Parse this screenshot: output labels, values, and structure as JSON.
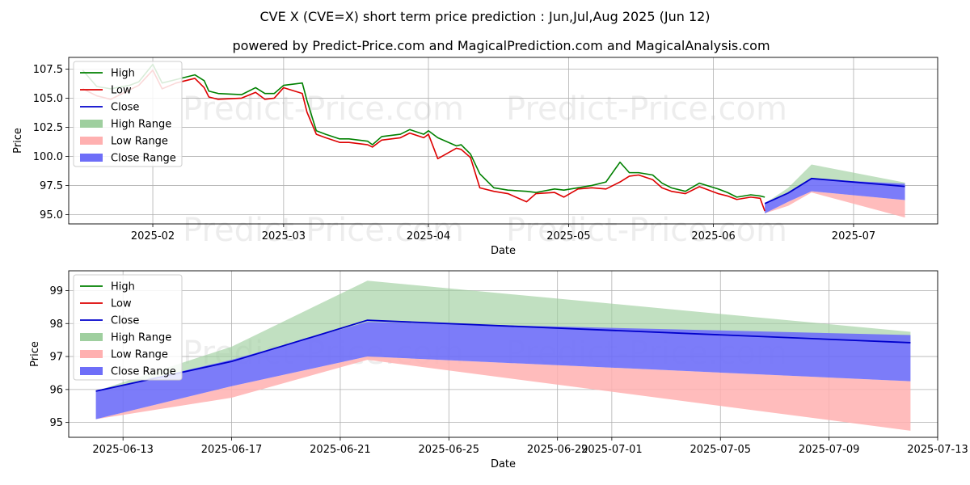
{
  "title": "CVE X (CVE=X) short term price prediction : Jun,Jul,Aug 2025 (Jun 12)",
  "subtitle": "powered by Predict-Price.com and MagicalPrediction.com and MagicalAnalysis.com",
  "watermark": "Predict-Price.com",
  "colors": {
    "high": "#008000",
    "low": "#dd0000",
    "close": "#0000cc",
    "high_range": "#9fcf9f",
    "low_range": "#ffb0b0",
    "close_range": "#6e6ef8"
  },
  "legend": [
    "High",
    "Low",
    "Close",
    "High Range",
    "Low Range",
    "Close Range"
  ],
  "chart_data": [
    {
      "type": "line",
      "name": "history-and-forecast",
      "xlabel": "Date",
      "ylabel": "Price",
      "xlim": [
        "2025-01-14",
        "2025-07-19"
      ],
      "ylim": [
        94.2,
        108.5
      ],
      "xticks": [
        "2025-02",
        "2025-03",
        "2025-04",
        "2025-05",
        "2025-06",
        "2025-07"
      ],
      "yticks": [
        "95.0",
        "97.5",
        "100.0",
        "102.5",
        "105.0",
        "107.5"
      ],
      "history": {
        "dates": [
          "2025-01-17",
          "2025-01-20",
          "2025-01-23",
          "2025-01-27",
          "2025-01-29",
          "2025-02-01",
          "2025-02-03",
          "2025-02-06",
          "2025-02-10",
          "2025-02-12",
          "2025-02-13",
          "2025-02-15",
          "2025-02-20",
          "2025-02-23",
          "2025-02-25",
          "2025-02-27",
          "2025-03-01",
          "2025-03-05",
          "2025-03-06",
          "2025-03-08",
          "2025-03-10",
          "2025-03-13",
          "2025-03-15",
          "2025-03-19",
          "2025-03-20",
          "2025-03-22",
          "2025-03-26",
          "2025-03-28",
          "2025-03-31",
          "2025-04-01",
          "2025-04-03",
          "2025-04-07",
          "2025-04-08",
          "2025-04-10",
          "2025-04-12",
          "2025-04-15",
          "2025-04-18",
          "2025-04-22",
          "2025-04-24",
          "2025-04-28",
          "2025-04-30",
          "2025-05-03",
          "2025-05-06",
          "2025-05-09",
          "2025-05-12",
          "2025-05-14",
          "2025-05-16",
          "2025-05-19",
          "2025-05-21",
          "2025-05-23",
          "2025-05-26",
          "2025-05-29",
          "2025-06-02",
          "2025-06-04",
          "2025-06-06",
          "2025-06-09",
          "2025-06-11",
          "2025-06-12"
        ],
        "high": [
          107.4,
          106.0,
          105.8,
          106.1,
          106.4,
          107.9,
          106.3,
          106.6,
          107.0,
          106.5,
          105.6,
          105.4,
          105.3,
          105.9,
          105.4,
          105.4,
          106.1,
          106.3,
          104.8,
          102.2,
          101.9,
          101.5,
          101.5,
          101.3,
          101.0,
          101.7,
          101.9,
          102.3,
          101.9,
          102.2,
          101.6,
          100.9,
          101.0,
          100.2,
          98.5,
          97.3,
          97.1,
          97.0,
          96.9,
          97.2,
          97.1,
          97.3,
          97.5,
          97.8,
          99.5,
          98.6,
          98.6,
          98.4,
          97.7,
          97.3,
          97.0,
          97.7,
          97.2,
          96.9,
          96.5,
          96.7,
          96.6,
          96.5
        ],
        "low": [
          105.8,
          105.2,
          104.9,
          105.7,
          106.1,
          107.4,
          105.8,
          106.3,
          106.7,
          105.9,
          105.1,
          104.9,
          105.0,
          105.5,
          104.9,
          105.0,
          105.9,
          105.4,
          103.8,
          101.9,
          101.6,
          101.2,
          101.2,
          101.0,
          100.8,
          101.4,
          101.6,
          102.0,
          101.6,
          101.9,
          99.8,
          100.7,
          100.6,
          99.9,
          97.3,
          97.0,
          96.8,
          96.1,
          96.8,
          96.9,
          96.5,
          97.2,
          97.3,
          97.2,
          97.8,
          98.3,
          98.4,
          98.0,
          97.3,
          97.0,
          96.8,
          97.4,
          96.8,
          96.6,
          96.3,
          96.5,
          96.4,
          95.3
        ],
        "close": [],
        "note": "historical High/Low approximated from the rendered lines"
      },
      "forecast": {
        "dates": [
          "2025-06-12",
          "2025-06-17",
          "2025-06-22",
          "2025-07-12"
        ],
        "close": [
          95.95,
          96.85,
          98.1,
          97.42
        ],
        "close_range_upper": [
          95.95,
          96.9,
          98.05,
          97.65
        ],
        "close_range_lower": [
          95.1,
          96.1,
          97.0,
          96.25
        ],
        "high_range_upper": [
          95.95,
          97.3,
          99.3,
          97.75
        ],
        "low_range_lower": [
          95.1,
          95.75,
          96.9,
          94.75
        ]
      }
    },
    {
      "type": "area",
      "name": "forecast-zoom",
      "xlabel": "Date",
      "ylabel": "Price",
      "xlim": [
        "2025-06-11",
        "2025-07-13"
      ],
      "ylim": [
        94.55,
        99.6
      ],
      "xticks": [
        "2025-06-13",
        "2025-06-17",
        "2025-06-21",
        "2025-06-25",
        "2025-06-29",
        "2025-07-01",
        "2025-07-05",
        "2025-07-09",
        "2025-07-13"
      ],
      "yticks": [
        "95",
        "96",
        "97",
        "98",
        "99"
      ],
      "forecast": {
        "dates": [
          "2025-06-12",
          "2025-06-17",
          "2025-06-22",
          "2025-07-12"
        ],
        "close": [
          95.95,
          96.85,
          98.1,
          97.42
        ],
        "close_range_upper": [
          95.95,
          96.9,
          98.05,
          97.65
        ],
        "close_range_lower": [
          95.1,
          96.1,
          97.0,
          96.25
        ],
        "high_range_upper": [
          95.95,
          97.3,
          99.3,
          97.75
        ],
        "low_range_lower": [
          95.1,
          95.75,
          96.9,
          94.75
        ]
      }
    }
  ]
}
